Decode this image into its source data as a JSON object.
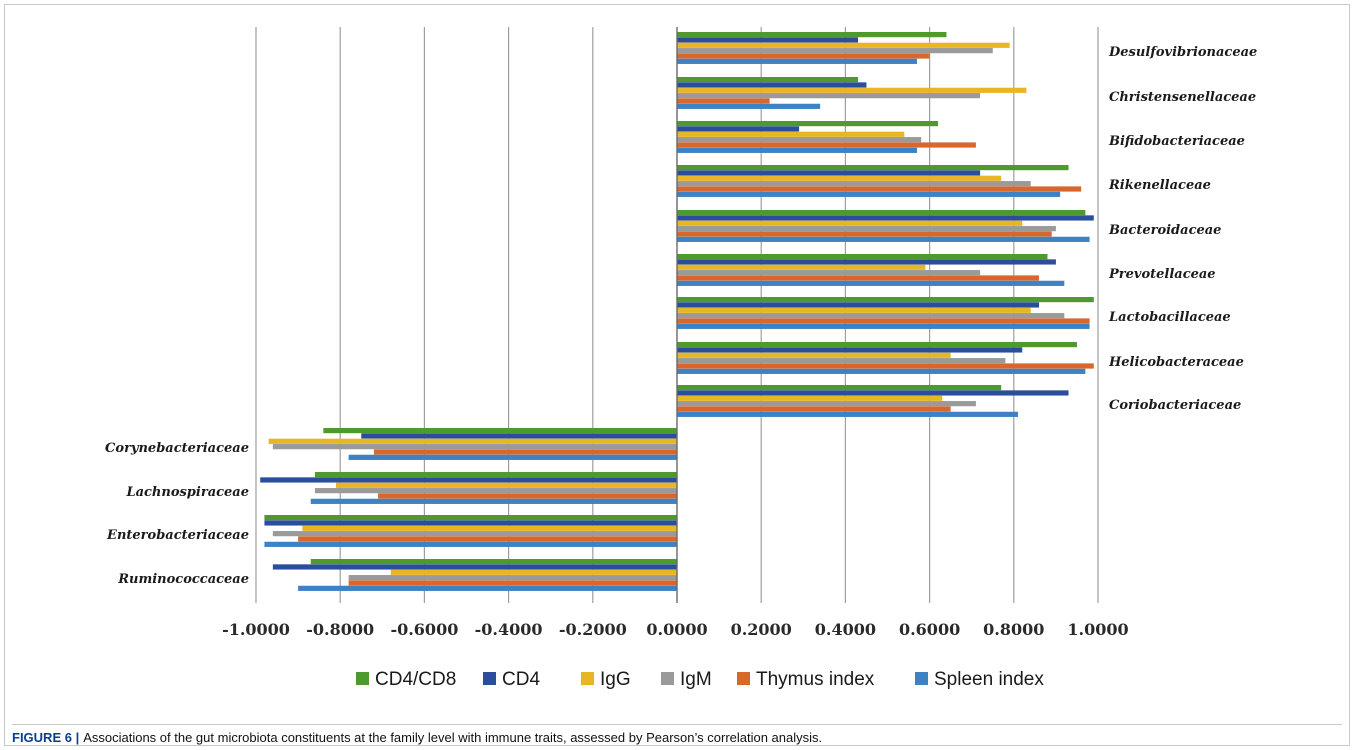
{
  "caption": {
    "label": "FIGURE 6 |",
    "text": "Associations of the gut microbiota constituents at the family level with immune traits, assessed by Pearson’s correlation analysis."
  },
  "chart_data": {
    "type": "bar",
    "orientation": "horizontal",
    "xlim": [
      -1.0,
      1.0
    ],
    "xticks": [
      "-1.0000",
      "-0.8000",
      "-0.6000",
      "-0.4000",
      "-0.2000",
      "0.0000",
      "0.2000",
      "0.4000",
      "0.6000",
      "0.8000",
      "1.0000"
    ],
    "xtick_values": [
      -1.0,
      -0.8,
      -0.6,
      -0.4,
      -0.2,
      0.0,
      0.2,
      0.4,
      0.6,
      0.8,
      1.0
    ],
    "grid": "vertical",
    "legend_position": "bottom",
    "categories": [
      "Desulfovibrionaceae",
      "Christensenellaceae",
      "Bifidobacteriaceae",
      "Rikenellaceae",
      "Bacteroidaceae",
      "Prevotellaceae",
      "Lactobacillaceae",
      "Helicobacteraceae",
      "Coriobacteriaceae",
      "Corynebacteriaceae",
      "Lachnospiraceae",
      "Enterobacteriaceae",
      "Ruminococcaceae"
    ],
    "series": [
      {
        "name": "CD4/CD8",
        "color": "#4e9a2f",
        "values": [
          0.64,
          0.43,
          0.62,
          0.93,
          0.97,
          0.88,
          0.99,
          0.95,
          0.77,
          -0.84,
          -0.86,
          -0.98,
          -0.87
        ]
      },
      {
        "name": "CD4",
        "color": "#2a4d9c",
        "values": [
          0.43,
          0.45,
          0.29,
          0.72,
          0.99,
          0.9,
          0.86,
          0.82,
          0.93,
          -0.75,
          -0.99,
          -0.98,
          -0.96
        ]
      },
      {
        "name": "IgG",
        "color": "#e8b523",
        "values": [
          0.79,
          0.83,
          0.54,
          0.77,
          0.82,
          0.59,
          0.84,
          0.65,
          0.63,
          -0.97,
          -0.81,
          -0.89,
          -0.68
        ]
      },
      {
        "name": "IgM",
        "color": "#9a9a9a",
        "values": [
          0.75,
          0.72,
          0.58,
          0.84,
          0.9,
          0.72,
          0.92,
          0.78,
          0.71,
          -0.96,
          -0.86,
          -0.96,
          -0.78
        ]
      },
      {
        "name": "Thymus index",
        "color": "#d9662b",
        "values": [
          0.6,
          0.22,
          0.71,
          0.96,
          0.89,
          0.86,
          0.98,
          0.99,
          0.65,
          -0.72,
          -0.71,
          -0.9,
          -0.78
        ]
      },
      {
        "name": "Spleen index",
        "color": "#3f82c4",
        "values": [
          0.57,
          0.34,
          0.57,
          0.91,
          0.98,
          0.92,
          0.98,
          0.97,
          0.81,
          -0.78,
          -0.87,
          -0.98,
          -0.9
        ]
      }
    ]
  }
}
